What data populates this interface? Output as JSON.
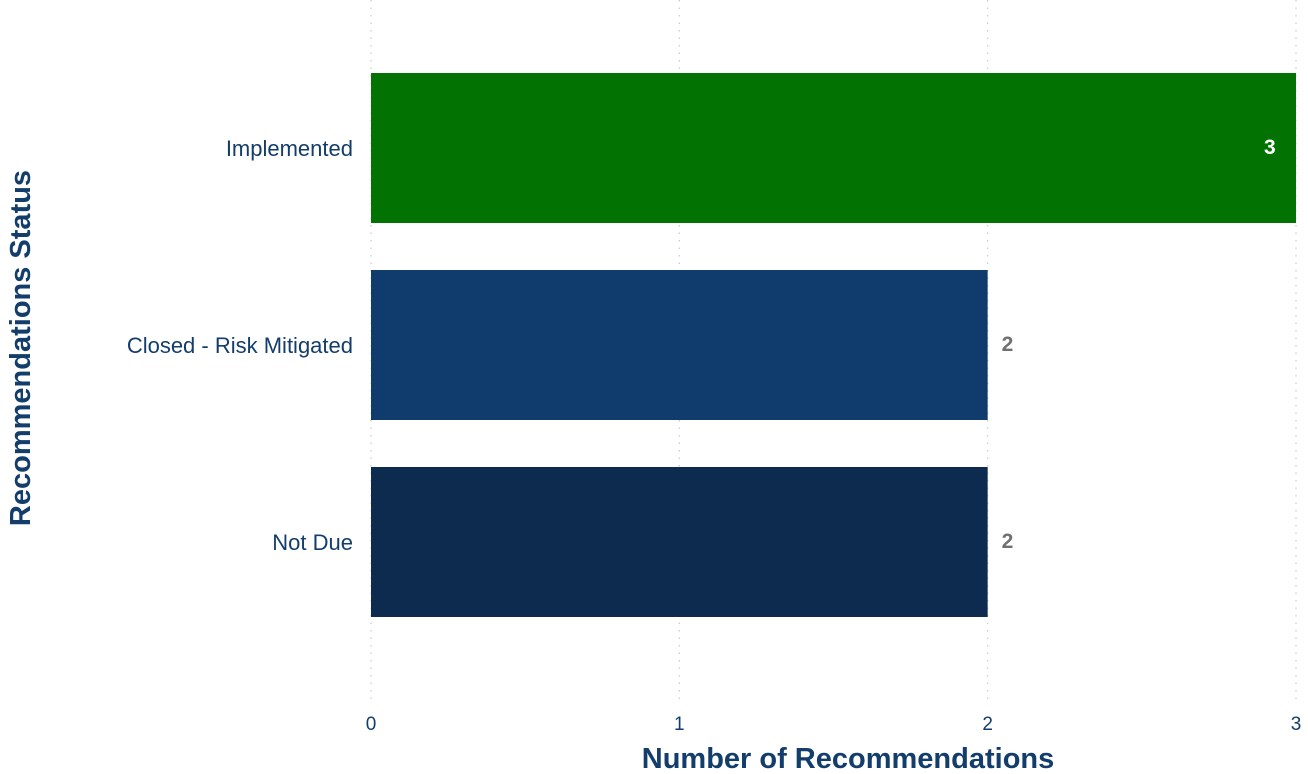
{
  "chart_data": {
    "type": "bar",
    "orientation": "horizontal",
    "categories": [
      "Implemented",
      "Closed - Risk Mitigated",
      "Not Due"
    ],
    "values": [
      3,
      2,
      2
    ],
    "data_labels": [
      "3",
      "2",
      "2"
    ],
    "bar_colors": [
      "#027202",
      "#0f3c6d",
      "#0c2b4e"
    ],
    "data_label_colors": [
      "#ffffff",
      "#707070",
      "#707070"
    ],
    "xlabel": "Number of Recommendations",
    "ylabel": "Recommendations Status",
    "xlim": [
      0,
      3
    ],
    "x_ticks": [
      0,
      1,
      2,
      3
    ],
    "x_tick_labels": [
      "0",
      "1",
      "2",
      "3"
    ],
    "grid": "vertical dotted",
    "legend": "none"
  }
}
